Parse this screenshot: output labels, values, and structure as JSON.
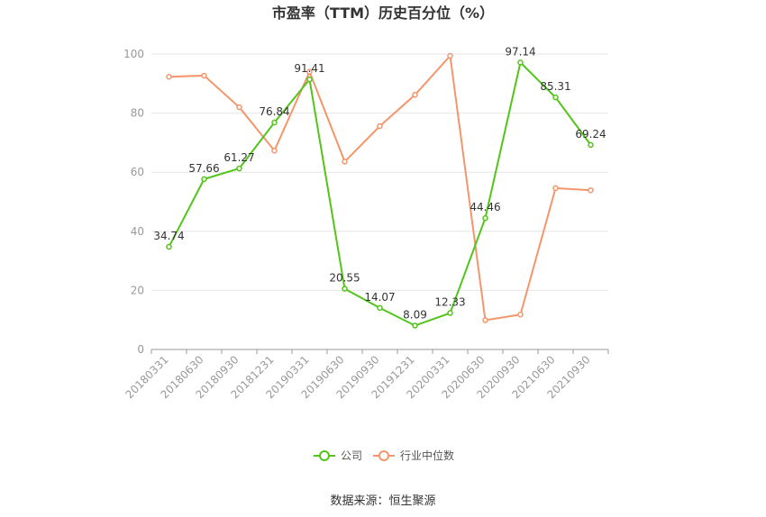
{
  "chart_data": {
    "type": "line",
    "title": "市盈率（TTM）历史百分位（%）",
    "categories": [
      "20180331",
      "20180630",
      "20180930",
      "20181231",
      "20190331",
      "20190630",
      "20190930",
      "20191231",
      "20200331",
      "20200630",
      "20200930",
      "20210630",
      "20210930"
    ],
    "series": [
      {
        "name": "公司",
        "color": "#52c41a",
        "values": [
          34.74,
          57.66,
          61.27,
          76.84,
          91.41,
          20.55,
          14.07,
          8.09,
          12.33,
          44.46,
          97.14,
          85.31,
          69.24
        ],
        "labels": [
          "34.74",
          "57.66",
          "61.27",
          "76.84",
          "91.41",
          "20.55",
          "14.07",
          "8.09",
          "12.33",
          "44.46",
          "97.14",
          "85.31",
          "69.24"
        ]
      },
      {
        "name": "行业中位数",
        "color": "#f4956b",
        "values": [
          92.3,
          92.7,
          82.0,
          67.3,
          94.0,
          63.6,
          75.6,
          86.2,
          99.4,
          9.9,
          11.8,
          54.6,
          53.9
        ]
      }
    ],
    "yticks": [
      "0",
      "20",
      "40",
      "60",
      "80",
      "100"
    ],
    "ylim": [
      0,
      100
    ],
    "grid": true,
    "legend_position": "bottom-center"
  },
  "source_text": "数据来源：恒生聚源"
}
